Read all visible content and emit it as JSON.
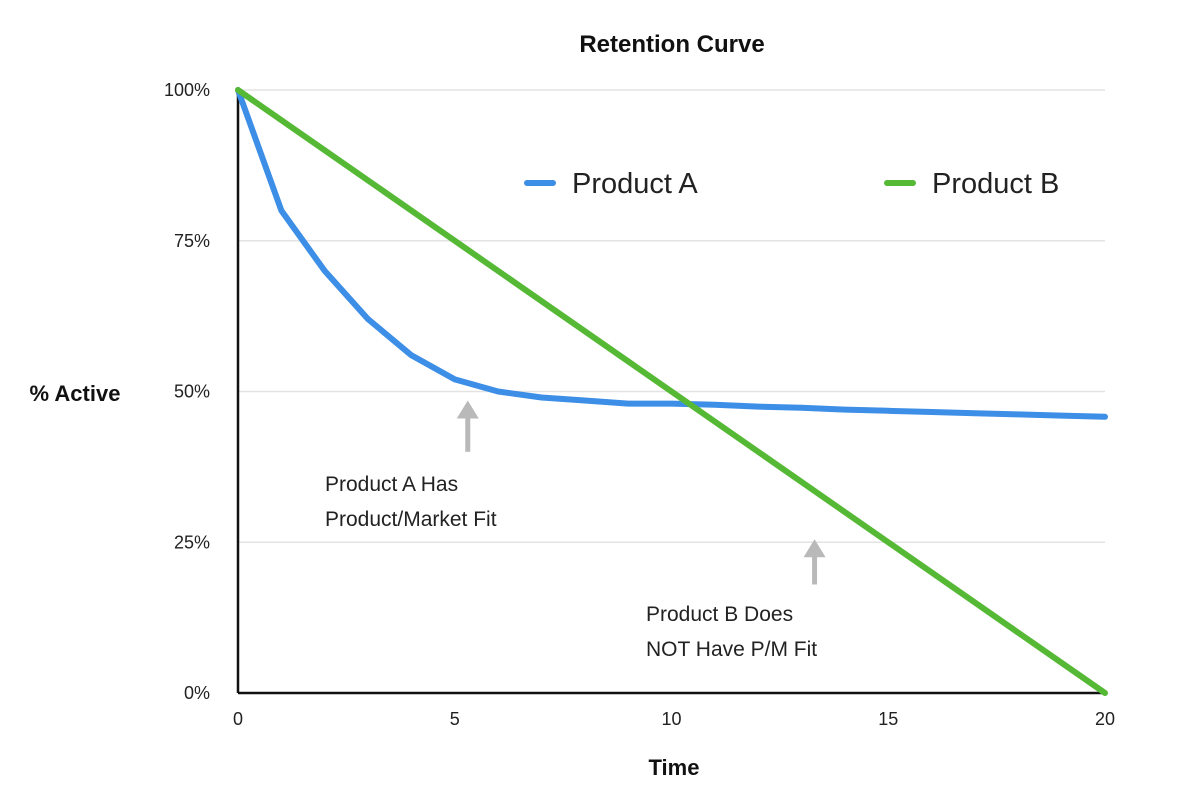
{
  "chart_data": {
    "type": "line",
    "title": "Retention Curve",
    "xlabel": "Time",
    "ylabel": "% Active",
    "xlim": [
      0,
      20
    ],
    "ylim": [
      0,
      100
    ],
    "x_ticks": [
      0,
      5,
      10,
      15,
      20
    ],
    "x_tick_labels": [
      "0",
      "5",
      "10",
      "15",
      "20"
    ],
    "y_ticks": [
      0,
      25,
      50,
      75,
      100
    ],
    "y_tick_labels": [
      "0%",
      "25%",
      "50%",
      "75%",
      "100%"
    ],
    "grid": "horizontal",
    "legend_position": "top-right",
    "series": [
      {
        "name": "Product A",
        "color": "#3d8ee6",
        "x": [
          0,
          1,
          2,
          3,
          4,
          5,
          6,
          7,
          8,
          9,
          10,
          11,
          12,
          13,
          14,
          15,
          16,
          17,
          18,
          19,
          20
        ],
        "values": [
          100,
          80,
          70,
          62,
          56,
          52,
          50,
          49,
          48.5,
          48,
          48,
          47.8,
          47.5,
          47.3,
          47,
          46.8,
          46.6,
          46.4,
          46.2,
          46,
          45.8
        ]
      },
      {
        "name": "Product B",
        "color": "#56b935",
        "x": [
          0,
          20
        ],
        "values": [
          100,
          0
        ]
      }
    ],
    "annotations": [
      {
        "lines": [
          "Product A Has",
          "Product/Market Fit"
        ],
        "arrow_x": 5.3,
        "arrow_y_from": 40,
        "arrow_y_to": 48.5
      },
      {
        "lines": [
          "Product B Does",
          "NOT Have P/M Fit"
        ],
        "arrow_x": 13.3,
        "arrow_y_from": 18,
        "arrow_y_to": 25.5
      }
    ]
  }
}
